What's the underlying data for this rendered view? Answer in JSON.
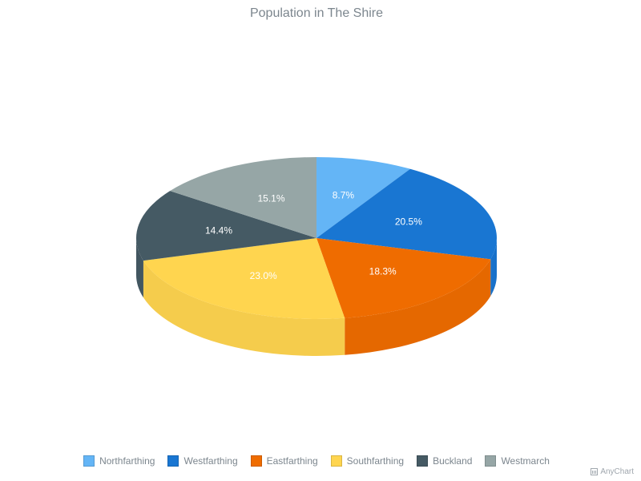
{
  "chart_data": {
    "type": "pie",
    "title": "Population in The Shire",
    "categories": [
      "Northfarthing",
      "Westfarthing",
      "Eastfarthing",
      "Southfarthing",
      "Buckland",
      "Westmarch"
    ],
    "values": [
      8.7,
      20.5,
      18.3,
      23.0,
      14.4,
      15.1
    ],
    "value_labels": [
      "8.7%",
      "20.5%",
      "18.3%",
      "23.0%",
      "14.4%",
      "15.1%"
    ],
    "colors": [
      "#64b5f6",
      "#1976d2",
      "#ef6c00",
      "#ffd54f",
      "#455a64",
      "#96a6a6"
    ],
    "style": "3d",
    "legend_position": "bottom"
  },
  "credits": "AnyChart"
}
